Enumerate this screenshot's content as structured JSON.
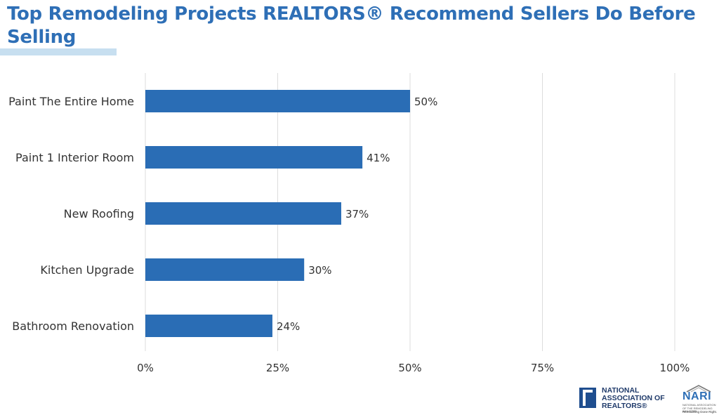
{
  "title": "Top Remodeling Projects REALTORS® Recommend Sellers Do Before Selling",
  "colors": {
    "bar": "#2a6db5",
    "title": "#2e6fb6",
    "grid": "#dcdcdc",
    "underline": "#c7dff0"
  },
  "chart_data": {
    "type": "bar",
    "orientation": "horizontal",
    "categories": [
      "Paint The Entire Home",
      "Paint 1 Interior Room",
      "New Roofing",
      "Kitchen Upgrade",
      "Bathroom Renovation"
    ],
    "values": [
      50,
      41,
      37,
      30,
      24
    ],
    "value_labels": [
      "50%",
      "41%",
      "37%",
      "30%",
      "24%"
    ],
    "xlim": [
      0,
      100
    ],
    "xticks": [
      0,
      25,
      50,
      75,
      100
    ],
    "xtick_labels": [
      "0%",
      "25%",
      "50%",
      "75%",
      "100%"
    ],
    "grid": true
  },
  "logos": {
    "nar": {
      "line1": "NATIONAL",
      "line2": "ASSOCIATION OF",
      "line3": "REALTORS®"
    },
    "nari": {
      "name": "NARI",
      "sub": "NATIONAL ASSOCIATION OF THE REMODELING INDUSTRY",
      "tagline": "Remodeling Done Right."
    }
  }
}
